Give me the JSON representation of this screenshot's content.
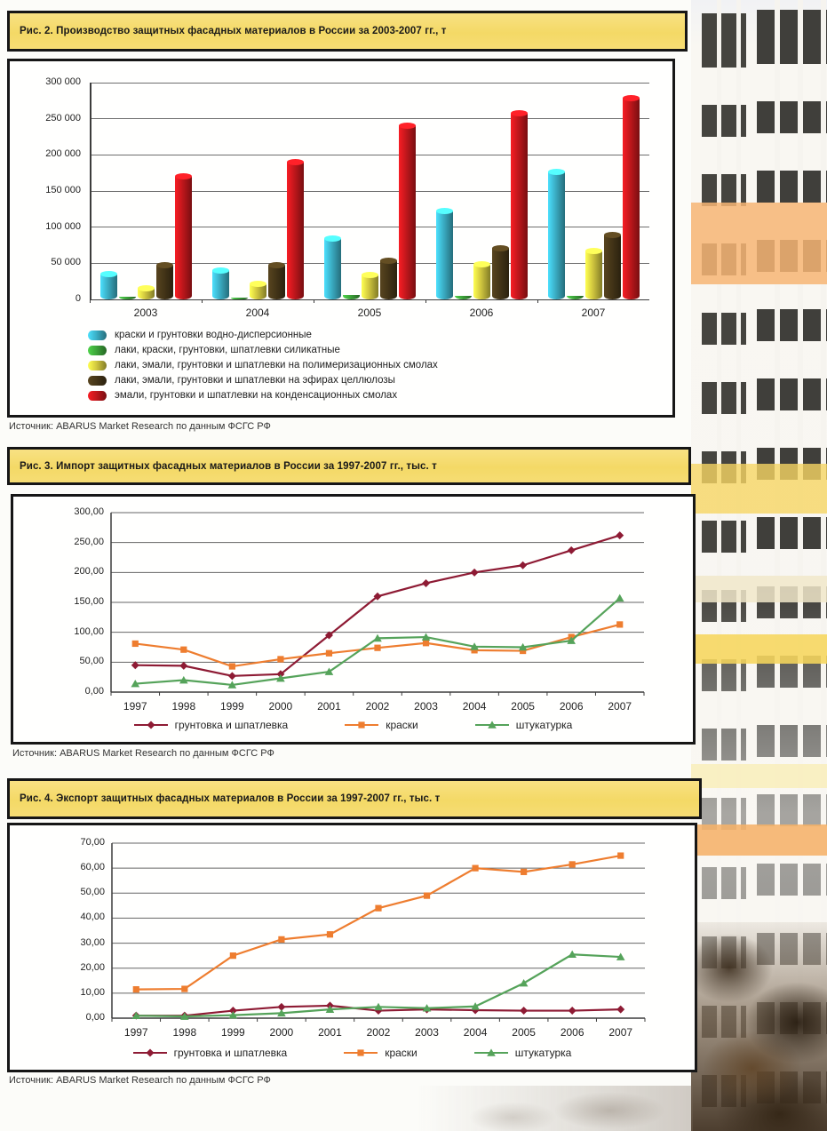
{
  "source_note": "Источник: ABARUS Market Research по данным ФСГС РФ",
  "chart_data": [
    {
      "type": "bar",
      "title": "Рис. 2. Производство защитных фасадных материалов в России за 2003-2007 гг., т",
      "categories": [
        "2003",
        "2004",
        "2005",
        "2006",
        "2007"
      ],
      "series": [
        {
          "name": "краски и грунтовки водно-дисперсионные",
          "color": "#3bafc6",
          "values": [
            35000,
            40000,
            84000,
            122000,
            177000
          ]
        },
        {
          "name": "лаки, краски, грунтовки, шпатлевки силикатные",
          "color": "#3da53a",
          "values": [
            4000,
            1000,
            6000,
            5000,
            5000
          ]
        },
        {
          "name": "лаки, эмали, грунтовки и шпатлевки на полимеризационных смолах",
          "color": "#d2c83f",
          "values": [
            16000,
            21000,
            34000,
            48000,
            67000
          ]
        },
        {
          "name": "лаки, эмали, грунтовки и шпатлевки на эфирах целлюлозы",
          "color": "#453618",
          "values": [
            47000,
            47000,
            54000,
            71000,
            89000
          ]
        },
        {
          "name": "эмали, грунтовки и шпатлевки на конденсационных смолах",
          "color": "#c2171c",
          "values": [
            170000,
            190000,
            241000,
            257000,
            279000
          ]
        }
      ],
      "ylim": [
        0,
        300000
      ],
      "y_ticks": [
        "0",
        "50 000",
        "100 000",
        "150 000",
        "200 000",
        "250 000",
        "300 000"
      ],
      "grid": true,
      "legend_position": "bottom"
    },
    {
      "type": "line",
      "title": "Рис. 3. Импорт защитных фасадных материалов в России за 1997-2007 гг., тыс. т",
      "x": [
        "1997",
        "1998",
        "1999",
        "2000",
        "2001",
        "2002",
        "2003",
        "2004",
        "2005",
        "2006",
        "2007"
      ],
      "series": [
        {
          "name": "грунтовка и шпатлевка",
          "color": "#8e1b34",
          "marker": "diamond",
          "values": [
            45,
            44,
            27,
            30,
            95,
            160,
            182,
            200,
            212,
            237,
            262
          ]
        },
        {
          "name": "краски",
          "color": "#ee7d2f",
          "marker": "square",
          "values": [
            81,
            71,
            43,
            55,
            65,
            74,
            82,
            70,
            69,
            92,
            113
          ]
        },
        {
          "name": "штукатурка",
          "color": "#55a35a",
          "marker": "triangle",
          "values": [
            14,
            20,
            12,
            23,
            34,
            90,
            92,
            76,
            75,
            86,
            157
          ]
        }
      ],
      "ylim": [
        0,
        300
      ],
      "y_ticks": [
        "0,00",
        "50,00",
        "100,00",
        "150,00",
        "200,00",
        "250,00",
        "300,00"
      ],
      "grid": true,
      "legend_position": "bottom"
    },
    {
      "type": "line",
      "title": "Рис. 4. Экспорт защитных фасадных материалов в России за 1997-2007 гг., тыс. т",
      "x": [
        "1997",
        "1998",
        "1999",
        "2000",
        "2001",
        "2002",
        "2003",
        "2004",
        "2005",
        "2006",
        "2007"
      ],
      "series": [
        {
          "name": "грунтовка и шпатлевка",
          "color": "#8e1b34",
          "marker": "diamond",
          "values": [
            1,
            1,
            3,
            4.5,
            5,
            3,
            3.5,
            3.2,
            3,
            3,
            3.5
          ]
        },
        {
          "name": "краски",
          "color": "#ee7d2f",
          "marker": "square",
          "values": [
            11.5,
            11.7,
            25,
            31.5,
            33.5,
            44,
            49,
            60,
            58.5,
            61.5,
            65
          ]
        },
        {
          "name": "штукатурка",
          "color": "#55a35a",
          "marker": "triangle",
          "values": [
            1,
            0.7,
            1.2,
            2,
            3.5,
            4.5,
            4,
            4.7,
            14,
            25.5,
            24.5
          ]
        }
      ],
      "ylim": [
        0,
        70
      ],
      "y_ticks": [
        "0,00",
        "10,00",
        "20,00",
        "30,00",
        "40,00",
        "50,00",
        "60,00",
        "70,00"
      ],
      "grid": true,
      "legend_position": "bottom"
    }
  ]
}
